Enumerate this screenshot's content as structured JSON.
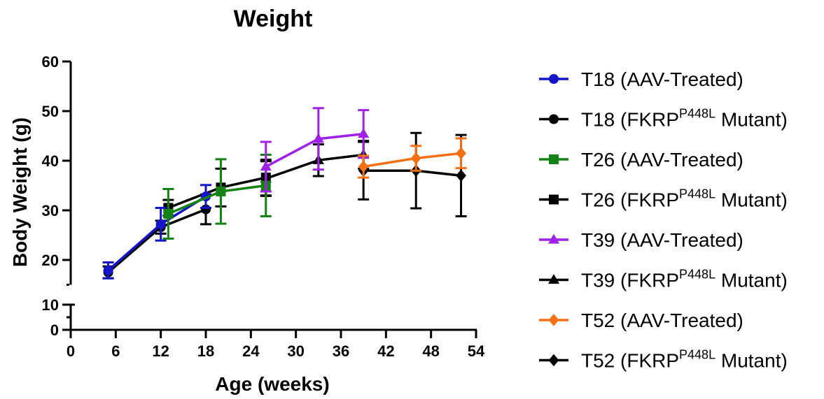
{
  "chart_data": {
    "type": "line",
    "title": "Weight",
    "xlabel": "Age (weeks)",
    "ylabel": "Body Weight (g)",
    "xlim": [
      0,
      54
    ],
    "x_ticks": [
      "0",
      "6",
      "12",
      "18",
      "24",
      "30",
      "36",
      "42",
      "48",
      "54"
    ],
    "ylim": [
      0,
      60
    ],
    "y_axis_break": [
      10,
      15
    ],
    "y_ticks": [
      "0",
      "10",
      "20",
      "30",
      "40",
      "50",
      "60"
    ],
    "grid": false,
    "legend_position": "right",
    "series": [
      {
        "name": "T18 (AAV-Treated)",
        "label_main": "T18 (AAV-Treated)",
        "label_sup": "",
        "label_tail": "",
        "color": "#1414c8",
        "marker": "circle",
        "x": [
          5,
          12,
          18
        ],
        "y": [
          17.9,
          27.2,
          32.8
        ],
        "err": [
          1.6,
          3.3,
          2.3
        ]
      },
      {
        "name": "T18 (FKRP P448L Mutant)",
        "label_main": "T18 (FKRP",
        "label_sup": "P448L",
        "label_tail": " Mutant)",
        "color": "#000000",
        "marker": "circle",
        "x": [
          5,
          12,
          18
        ],
        "y": [
          17.5,
          26.6,
          30.2
        ],
        "err": [
          1.2,
          1.3,
          3.0
        ]
      },
      {
        "name": "T26 (AAV-Treated)",
        "label_main": "T26 (AAV-Treated)",
        "label_sup": "",
        "label_tail": "",
        "color": "#148214",
        "marker": "square",
        "x": [
          13,
          20,
          26
        ],
        "y": [
          29.3,
          33.8,
          35.0
        ],
        "err": [
          5.0,
          6.5,
          6.2
        ]
      },
      {
        "name": "T26 (FKRP P448L Mutant)",
        "label_main": "T26 (FKRP",
        "label_sup": "P448L",
        "label_tail": " Mutant)",
        "color": "#000000",
        "marker": "square",
        "x": [
          13,
          20,
          26
        ],
        "y": [
          30.5,
          34.6,
          36.6
        ],
        "err": [
          1.6,
          3.8,
          3.6
        ]
      },
      {
        "name": "T39 (AAV-Treated)",
        "label_main": "T39 (AAV-Treated)",
        "label_sup": "",
        "label_tail": "",
        "color": "#a020e8",
        "marker": "triangle",
        "x": [
          26,
          33,
          39
        ],
        "y": [
          38.8,
          44.4,
          45.4
        ],
        "err": [
          5.0,
          6.2,
          4.8
        ]
      },
      {
        "name": "T39 (FKRP P448L Mutant)",
        "label_main": "T39 (FKRP",
        "label_sup": "P448L",
        "label_tail": " Mutant)",
        "color": "#000000",
        "marker": "triangle",
        "x": [
          26,
          33,
          39
        ],
        "y": [
          36.4,
          40.1,
          41.2
        ],
        "err": [
          3.5,
          3.2,
          2.8
        ]
      },
      {
        "name": "T52 (AAV-Treated)",
        "label_main": "T52 (AAV-Treated)",
        "label_sup": "",
        "label_tail": "",
        "color": "#f57014",
        "marker": "diamond",
        "x": [
          39,
          46,
          52
        ],
        "y": [
          38.8,
          40.5,
          41.5
        ],
        "err": [
          2.2,
          2.5,
          3.0
        ]
      },
      {
        "name": "T52 (FKRP P448L Mutant)",
        "label_main": "T52 (FKRP",
        "label_sup": "P448L",
        "label_tail": " Mutant)",
        "color": "#000000",
        "marker": "diamond",
        "x": [
          39,
          46,
          52
        ],
        "y": [
          38.0,
          38.0,
          37.0
        ],
        "err": [
          5.8,
          7.6,
          8.2
        ]
      }
    ]
  }
}
